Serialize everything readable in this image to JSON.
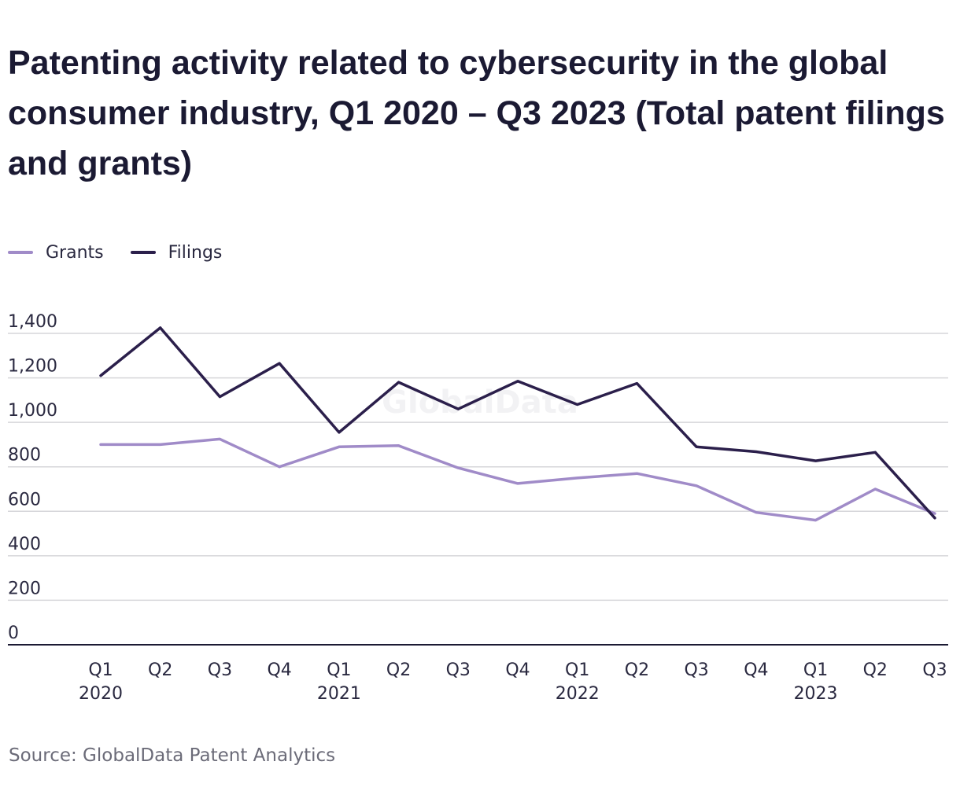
{
  "chart_data": {
    "type": "line",
    "title": "Patenting activity related to cybersecurity in the global consumer industry, Q1 2020 – Q3 2023 (Total patent filings and grants)",
    "xlabel": "",
    "ylabel": "",
    "quarters": [
      "Q1",
      "Q2",
      "Q3",
      "Q4",
      "Q1",
      "Q2",
      "Q3",
      "Q4",
      "Q1",
      "Q2",
      "Q3",
      "Q4",
      "Q1",
      "Q2",
      "Q3"
    ],
    "years": [
      "2020",
      "",
      "",
      "",
      "2021",
      "",
      "",
      "",
      "2022",
      "",
      "",
      "",
      "2023",
      "",
      ""
    ],
    "y_ticks": [
      "0",
      "200",
      "400",
      "600",
      "800",
      "1,000",
      "1,200",
      "1,400"
    ],
    "ylim": [
      0,
      1400
    ],
    "grid": true,
    "legend_position": "top-left",
    "series": [
      {
        "name": "Grants",
        "color": "#a08bc8",
        "values": [
          900,
          900,
          925,
          800,
          890,
          895,
          795,
          725,
          750,
          770,
          715,
          595,
          560,
          700,
          590
        ]
      },
      {
        "name": "Filings",
        "color": "#2b1f4b",
        "values": [
          1210,
          1425,
          1115,
          1265,
          955,
          1180,
          1060,
          1185,
          1080,
          1175,
          890,
          868,
          827,
          865,
          570
        ]
      }
    ],
    "watermark": "GlobalData",
    "source": "Source: GlobalData Patent Analytics"
  }
}
